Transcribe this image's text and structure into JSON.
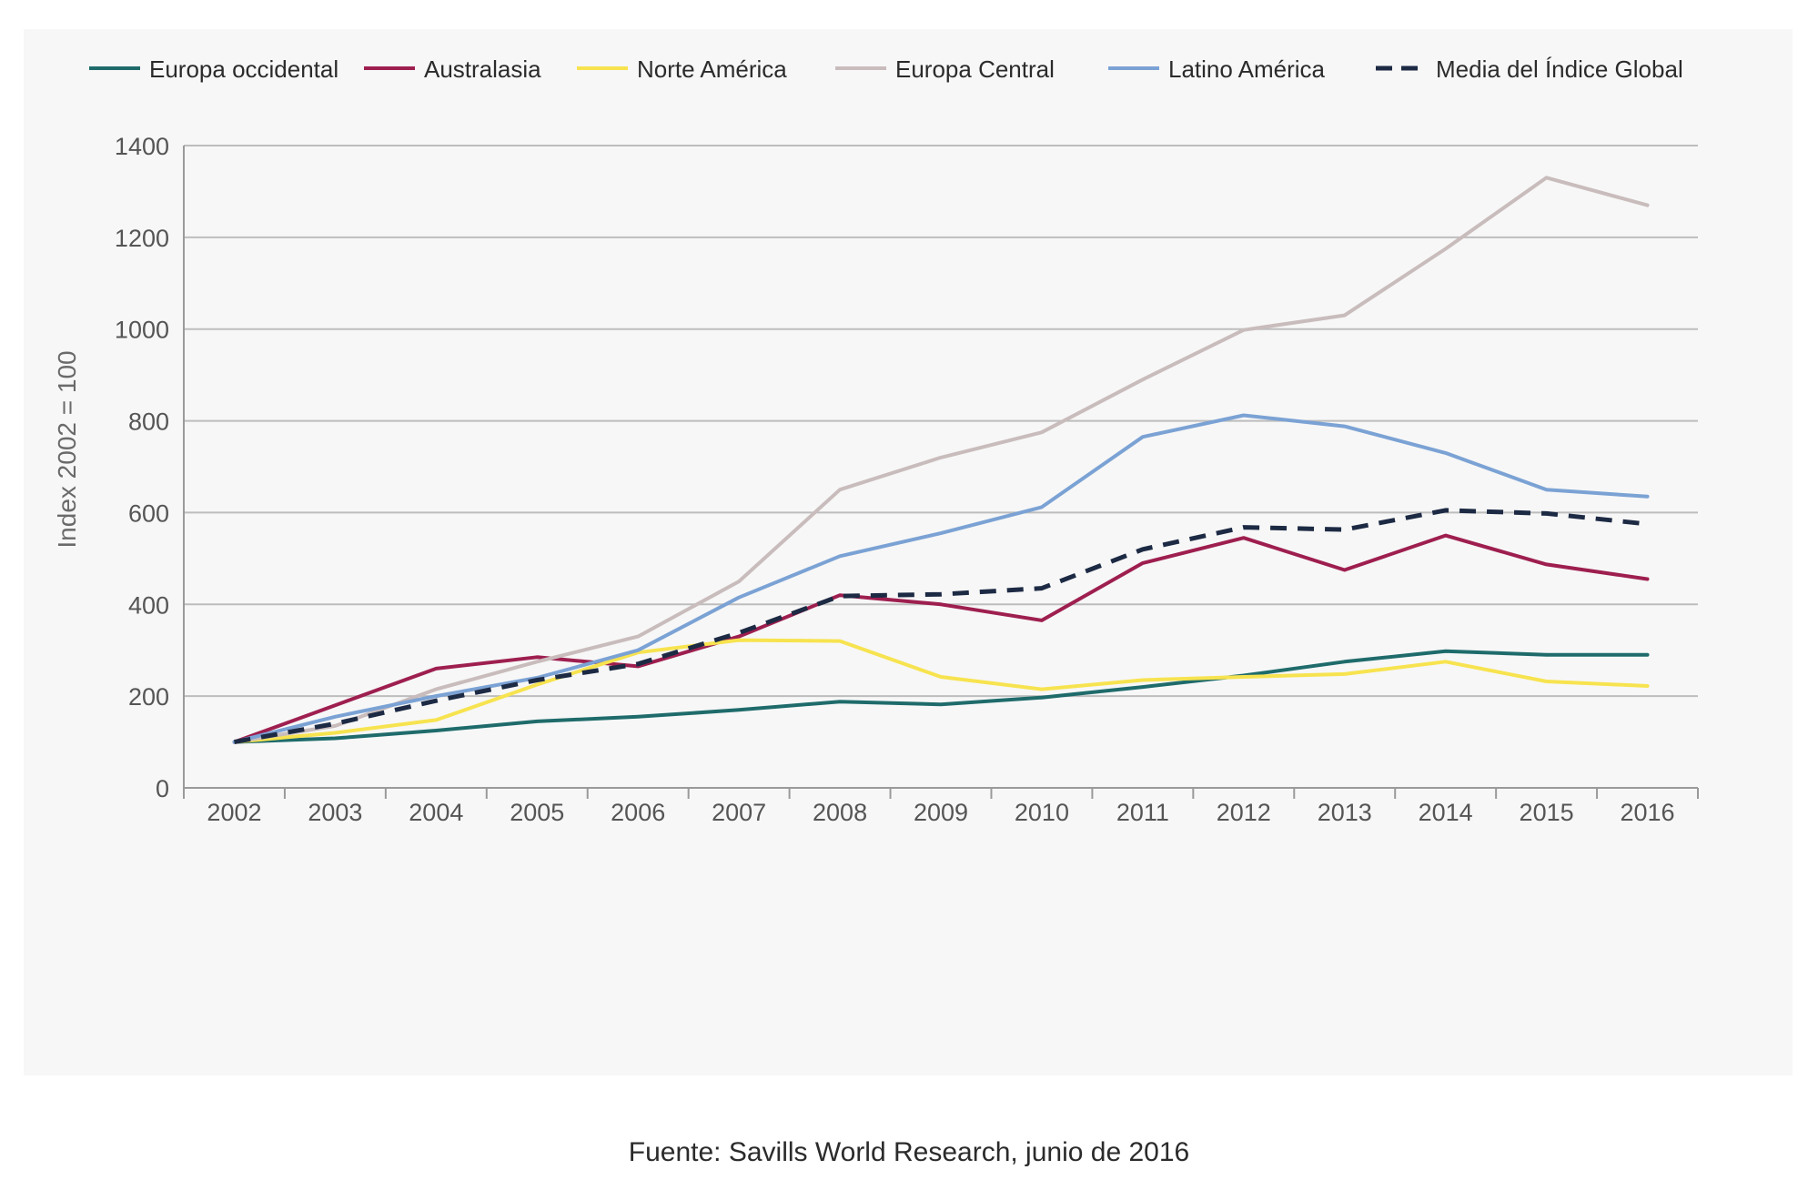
{
  "chart_data": {
    "type": "line",
    "title": "",
    "xlabel": "",
    "ylabel": "Index 2002 = 100",
    "ylim": [
      0,
      1400
    ],
    "yticks": [
      0,
      200,
      400,
      600,
      800,
      1000,
      1200,
      1400
    ],
    "grid": true,
    "legend_position": "top",
    "x": [
      "2002",
      "2003",
      "2004",
      "2005",
      "2006",
      "2007",
      "2008",
      "2009",
      "2010",
      "2011",
      "2012",
      "2013",
      "2014",
      "2015",
      "2016"
    ],
    "series": [
      {
        "name": "Europa occidental",
        "color": "#1f6b6b",
        "dashed": false,
        "values": [
          100,
          108,
          125,
          145,
          155,
          170,
          188,
          182,
          197,
          220,
          245,
          275,
          298,
          290,
          290
        ]
      },
      {
        "name": "Australasia",
        "color": "#9e1f4f",
        "dashed": false,
        "values": [
          100,
          180,
          260,
          285,
          265,
          330,
          420,
          400,
          365,
          490,
          545,
          475,
          550,
          487,
          455
        ]
      },
      {
        "name": "Norte América",
        "color": "#f7e34f",
        "dashed": false,
        "values": [
          100,
          120,
          148,
          225,
          295,
          322,
          320,
          242,
          215,
          235,
          242,
          248,
          275,
          232,
          222
        ]
      },
      {
        "name": "Europa Central",
        "color": "#c9bcbc",
        "dashed": false,
        "values": [
          100,
          135,
          215,
          275,
          330,
          450,
          650,
          720,
          775,
          890,
          998,
          1030,
          1175,
          1330,
          1270
        ]
      },
      {
        "name": "Latino América",
        "color": "#7ba2d4",
        "dashed": false,
        "values": [
          100,
          155,
          200,
          240,
          300,
          415,
          505,
          555,
          612,
          765,
          812,
          788,
          730,
          650,
          635
        ]
      },
      {
        "name": "Media del Índice Global",
        "color": "#1d2a44",
        "dashed": true,
        "values": [
          100,
          140,
          190,
          235,
          270,
          338,
          418,
          422,
          435,
          520,
          568,
          563,
          605,
          598,
          575
        ]
      }
    ]
  },
  "caption": "Fuente: Savills World Research, junio de 2016"
}
